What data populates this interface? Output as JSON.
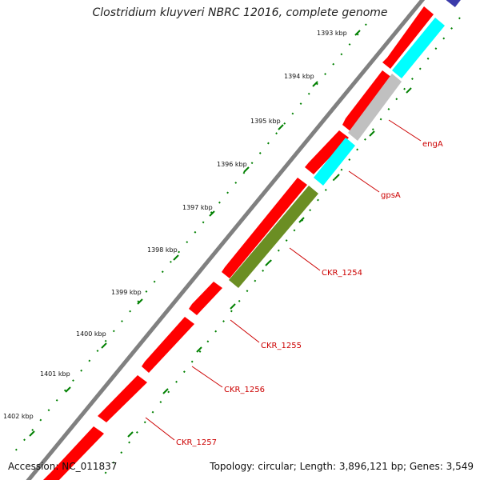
{
  "title": "Clostridium kluyveri NBRC 12016, complete genome",
  "footer": {
    "accession_label": "Accession:",
    "accession": "NC_011837",
    "topology_label": "Topology:",
    "topology": "circular",
    "length_label": "Length:",
    "length": "3,896,121 bp",
    "genes_label": "Genes:",
    "genes": "3,549"
  },
  "colors": {
    "backbone": "#808080",
    "forward_gene": "#ff0000",
    "reverse_gene": "#00ffff",
    "engA": "#c0c0c0",
    "CKR_1254": "#6b8e23",
    "ticks": "#008000",
    "label": "#cc0000",
    "corner_feature": "#3a3aaa"
  },
  "ticks": [
    "1393 kbp",
    "1394 kbp",
    "1395 kbp",
    "1396 kbp",
    "1397 kbp",
    "1398 kbp",
    "1399 kbp",
    "1400 kbp",
    "1401 kbp",
    "1402 kbp"
  ],
  "labels": {
    "engA": "engA",
    "gpsA": "gpsA",
    "CKR_1254": "CKR_1254",
    "CKR_1255": "CKR_1255",
    "CKR_1256": "CKR_1256",
    "CKR_1257": "CKR_1257"
  }
}
